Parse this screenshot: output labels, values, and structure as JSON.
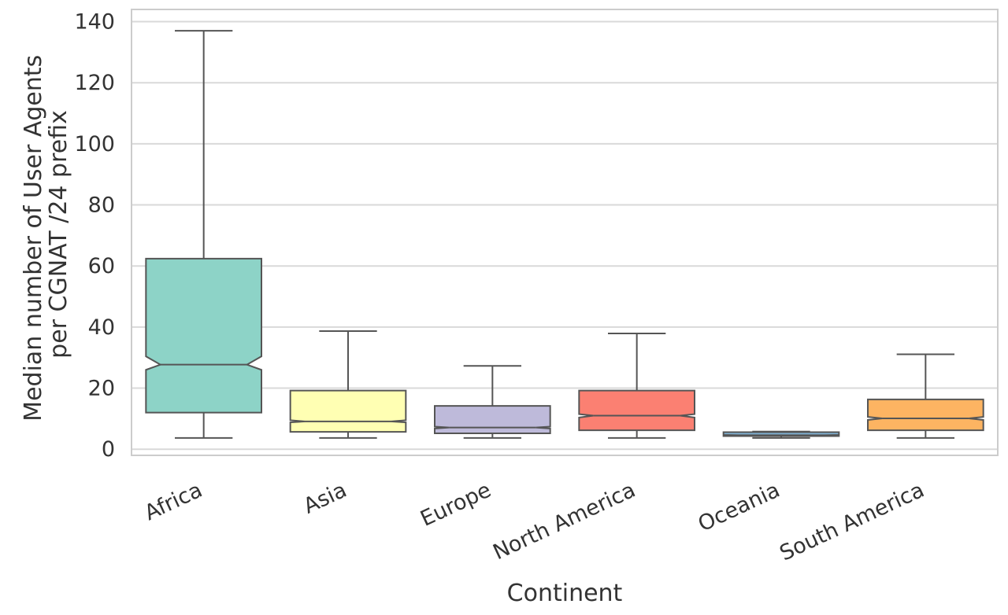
{
  "chart_data": {
    "type": "boxplot",
    "notched": true,
    "xlabel": "Continent",
    "ylabel_lines": [
      "Median number of User Agents",
      "per CGNAT /24 prefix"
    ],
    "ylim": [
      -2,
      144
    ],
    "yticks": [
      0,
      20,
      40,
      60,
      80,
      100,
      120,
      140
    ],
    "grid": true,
    "categories": [
      "Africa",
      "Asia",
      "Europe",
      "North America",
      "Oceania",
      "South America"
    ],
    "boxes": [
      {
        "category": "Africa",
        "whisker_low": 3.7,
        "q1": 12,
        "median": 27.7,
        "q3": 62.4,
        "whisker_high": 137,
        "notch_low": 26,
        "notch_high": 30.4,
        "color": "#8dd3c7"
      },
      {
        "category": "Asia",
        "whisker_low": 3.7,
        "q1": 5.7,
        "median": 9.1,
        "q3": 19.2,
        "whisker_high": 38.7,
        "notch_low": 8.8,
        "notch_high": 9.5,
        "color": "#ffffb3"
      },
      {
        "category": "Europe",
        "whisker_low": 3.7,
        "q1": 5.2,
        "median": 7.1,
        "q3": 14.2,
        "whisker_high": 27.3,
        "notch_low": 6.8,
        "notch_high": 7.4,
        "color": "#bebada"
      },
      {
        "category": "North America",
        "whisker_low": 3.7,
        "q1": 6.2,
        "median": 11,
        "q3": 19.2,
        "whisker_high": 37.9,
        "notch_low": 10.4,
        "notch_high": 11.5,
        "color": "#fb8072"
      },
      {
        "category": "Oceania",
        "whisker_low": 3.7,
        "q1": 4.3,
        "median": 4.6,
        "q3": 5.6,
        "whisker_high": 5.8,
        "notch_low": 4.5,
        "notch_high": 4.7,
        "color": "#80b1d3"
      },
      {
        "category": "South America",
        "whisker_low": 3.7,
        "q1": 6.2,
        "median": 10.1,
        "q3": 16.3,
        "whisker_high": 31.1,
        "notch_low": 9.6,
        "notch_high": 10.6,
        "color": "#fdb462"
      }
    ],
    "colors": {
      "grid": "#d9d9d9",
      "frame": "#cccccc",
      "line": "#555555",
      "text": "#333333"
    }
  }
}
